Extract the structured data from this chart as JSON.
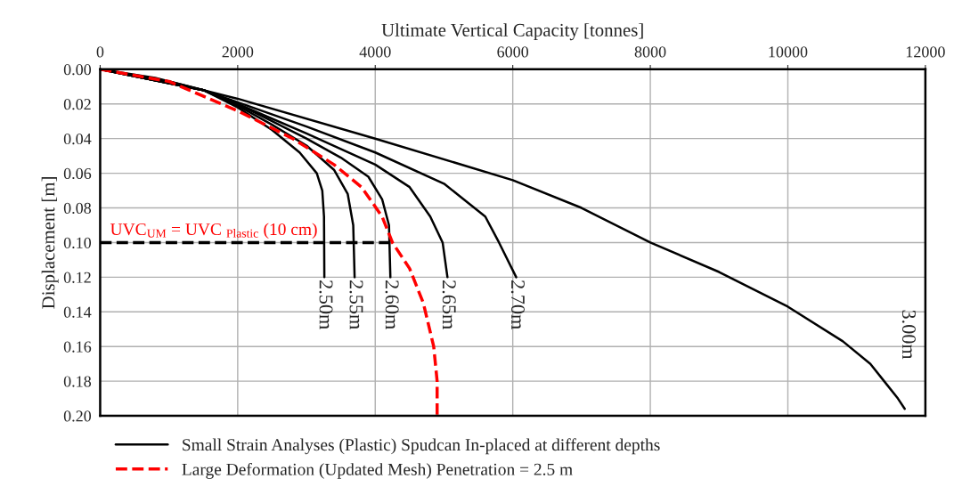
{
  "chart_data": {
    "type": "line",
    "xlabel": "Ultimate Vertical Capacity [tonnes]",
    "ylabel": "Displacement [m]",
    "xlim": [
      0,
      12000
    ],
    "xticks": [
      0,
      2000,
      4000,
      6000,
      8000,
      10000,
      12000
    ],
    "ylim": [
      0.2,
      0
    ],
    "yticks": [
      {
        "value": 0,
        "label": "0.00"
      },
      {
        "value": 0.02,
        "label": "0.02"
      },
      {
        "value": 0.04,
        "label": "0.04"
      },
      {
        "value": 0.06,
        "label": "0.06"
      },
      {
        "value": 0.08,
        "label": "0.08"
      },
      {
        "value": 0.1,
        "label": "0.10"
      },
      {
        "value": 0.12,
        "label": "0.12"
      },
      {
        "value": 0.14,
        "label": "0.14"
      },
      {
        "value": 0.16,
        "label": "0.16"
      },
      {
        "value": 0.18,
        "label": "0.18"
      },
      {
        "value": 0.2,
        "label": "0.20"
      }
    ],
    "grid": true,
    "legend": "bottom",
    "marker": "none",
    "series": [
      {
        "name": "Small Strain Analyses (Plastic) Spudcan In-placed at different depths",
        "color": "#000000",
        "line_style": "solid",
        "x": [
          0,
          800,
          1500,
          2000,
          2500,
          2900,
          3150,
          3230,
          3255,
          3260
        ],
        "values": [
          0,
          0.005,
          0.012,
          0.022,
          0.035,
          0.048,
          0.06,
          0.07,
          0.085,
          0.12
        ]
      },
      {
        "color": "#000000",
        "line_style": "solid",
        "x": [
          0,
          1500,
          2000,
          2500,
          3000,
          3400,
          3600,
          3680,
          3700
        ],
        "values": [
          0,
          0.012,
          0.021,
          0.032,
          0.044,
          0.058,
          0.072,
          0.09,
          0.12
        ]
      },
      {
        "color": "#000000",
        "line_style": "solid",
        "x": [
          0,
          1500,
          2000,
          2500,
          3000,
          3500,
          3900,
          4100,
          4200,
          4220
        ],
        "values": [
          0,
          0.012,
          0.02,
          0.03,
          0.04,
          0.051,
          0.062,
          0.075,
          0.09,
          0.12
        ]
      },
      {
        "color": "#000000",
        "line_style": "solid",
        "x": [
          0,
          1500,
          2000,
          3000,
          4000,
          4500,
          4800,
          4980,
          5050
        ],
        "values": [
          0,
          0.012,
          0.02,
          0.037,
          0.055,
          0.068,
          0.085,
          0.1,
          0.12
        ]
      },
      {
        "color": "#000000",
        "line_style": "solid",
        "x": [
          0,
          1500,
          2000,
          3000,
          4000,
          5000,
          5600,
          5800,
          6050
        ],
        "values": [
          0,
          0.012,
          0.019,
          0.033,
          0.048,
          0.066,
          0.085,
          0.1,
          0.12
        ]
      },
      {
        "color": "#000000",
        "line_style": "solid",
        "x": [
          0,
          1000,
          2000,
          4000,
          6000,
          7000,
          8000,
          9000,
          10000,
          10800,
          11200,
          11400,
          11600,
          11700
        ],
        "values": [
          0,
          0.007,
          0.017,
          0.04,
          0.064,
          0.08,
          0.1,
          0.117,
          0.137,
          0.157,
          0.17,
          0.18,
          0.19,
          0.196
        ]
      },
      {
        "name": "Large Deformation (Updated Mesh) Penetration = 2.5 m",
        "color": "#ff0000",
        "line_style": "dashed",
        "x": [
          0,
          1000,
          2000,
          2800,
          3400,
          3800,
          4100,
          4250,
          4500,
          4700,
          4850,
          4900,
          4900
        ],
        "values": [
          0,
          0.007,
          0.024,
          0.04,
          0.055,
          0.068,
          0.085,
          0.1,
          0.115,
          0.135,
          0.16,
          0.18,
          0.2
        ]
      },
      {
        "color": "#000000",
        "line_style": "dashed",
        "x": [
          0,
          4250
        ],
        "values": [
          0.1,
          0.1
        ]
      }
    ],
    "annotations": [
      {
        "text": "UVC$_{UM}$ = UVC $_{Plastic}$ (10 cm)",
        "x": 0,
        "y": 0.1
      },
      {
        "text": "2.50m",
        "x": 3260,
        "y": 0.12
      },
      {
        "text": "2.55m",
        "x": 3700,
        "y": 0.12
      },
      {
        "text": "2.60m",
        "x": 4220,
        "y": 0.12
      },
      {
        "text": "2.65m",
        "x": 5050,
        "y": 0.12
      },
      {
        "text": "2.70m",
        "x": 6050,
        "y": 0.12
      },
      {
        "text": "3.00m",
        "x": 11700,
        "y": 0.196
      }
    ]
  }
}
